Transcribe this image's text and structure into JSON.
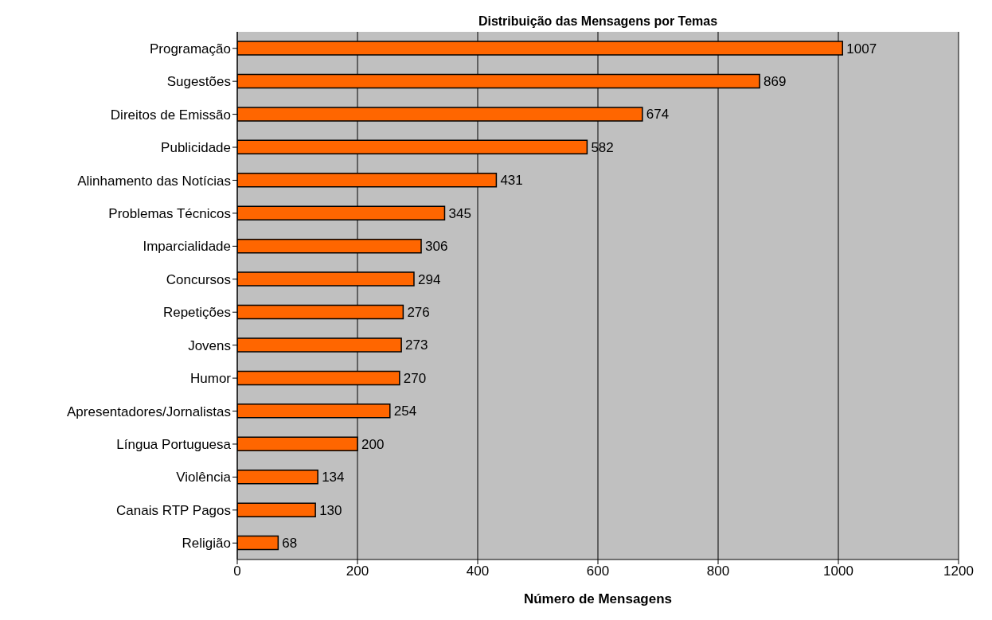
{
  "chart_data": {
    "type": "bar",
    "orientation": "horizontal",
    "title": "Distribuição das Mensagens por Temas",
    "xlabel": "Número de Mensagens",
    "categories": [
      "Programação",
      "Sugestões",
      "Direitos de Emissão",
      "Publicidade",
      "Alinhamento das Notícias",
      "Problemas Técnicos",
      "Imparcialidade",
      "Concursos",
      "Repetições",
      "Jovens",
      "Humor",
      "Apresentadores/Jornalistas",
      "Língua Portuguesa",
      "Violência",
      "Canais RTP Pagos",
      "Religião"
    ],
    "values": [
      1007,
      869,
      674,
      582,
      431,
      345,
      306,
      294,
      276,
      273,
      270,
      254,
      200,
      134,
      130,
      68
    ],
    "color": "#ff6600",
    "xlim": [
      0,
      1200
    ],
    "xticks": [
      0,
      200,
      400,
      600,
      800,
      1000,
      1200
    ],
    "grid": "x",
    "data_labels": true,
    "legend": false
  }
}
